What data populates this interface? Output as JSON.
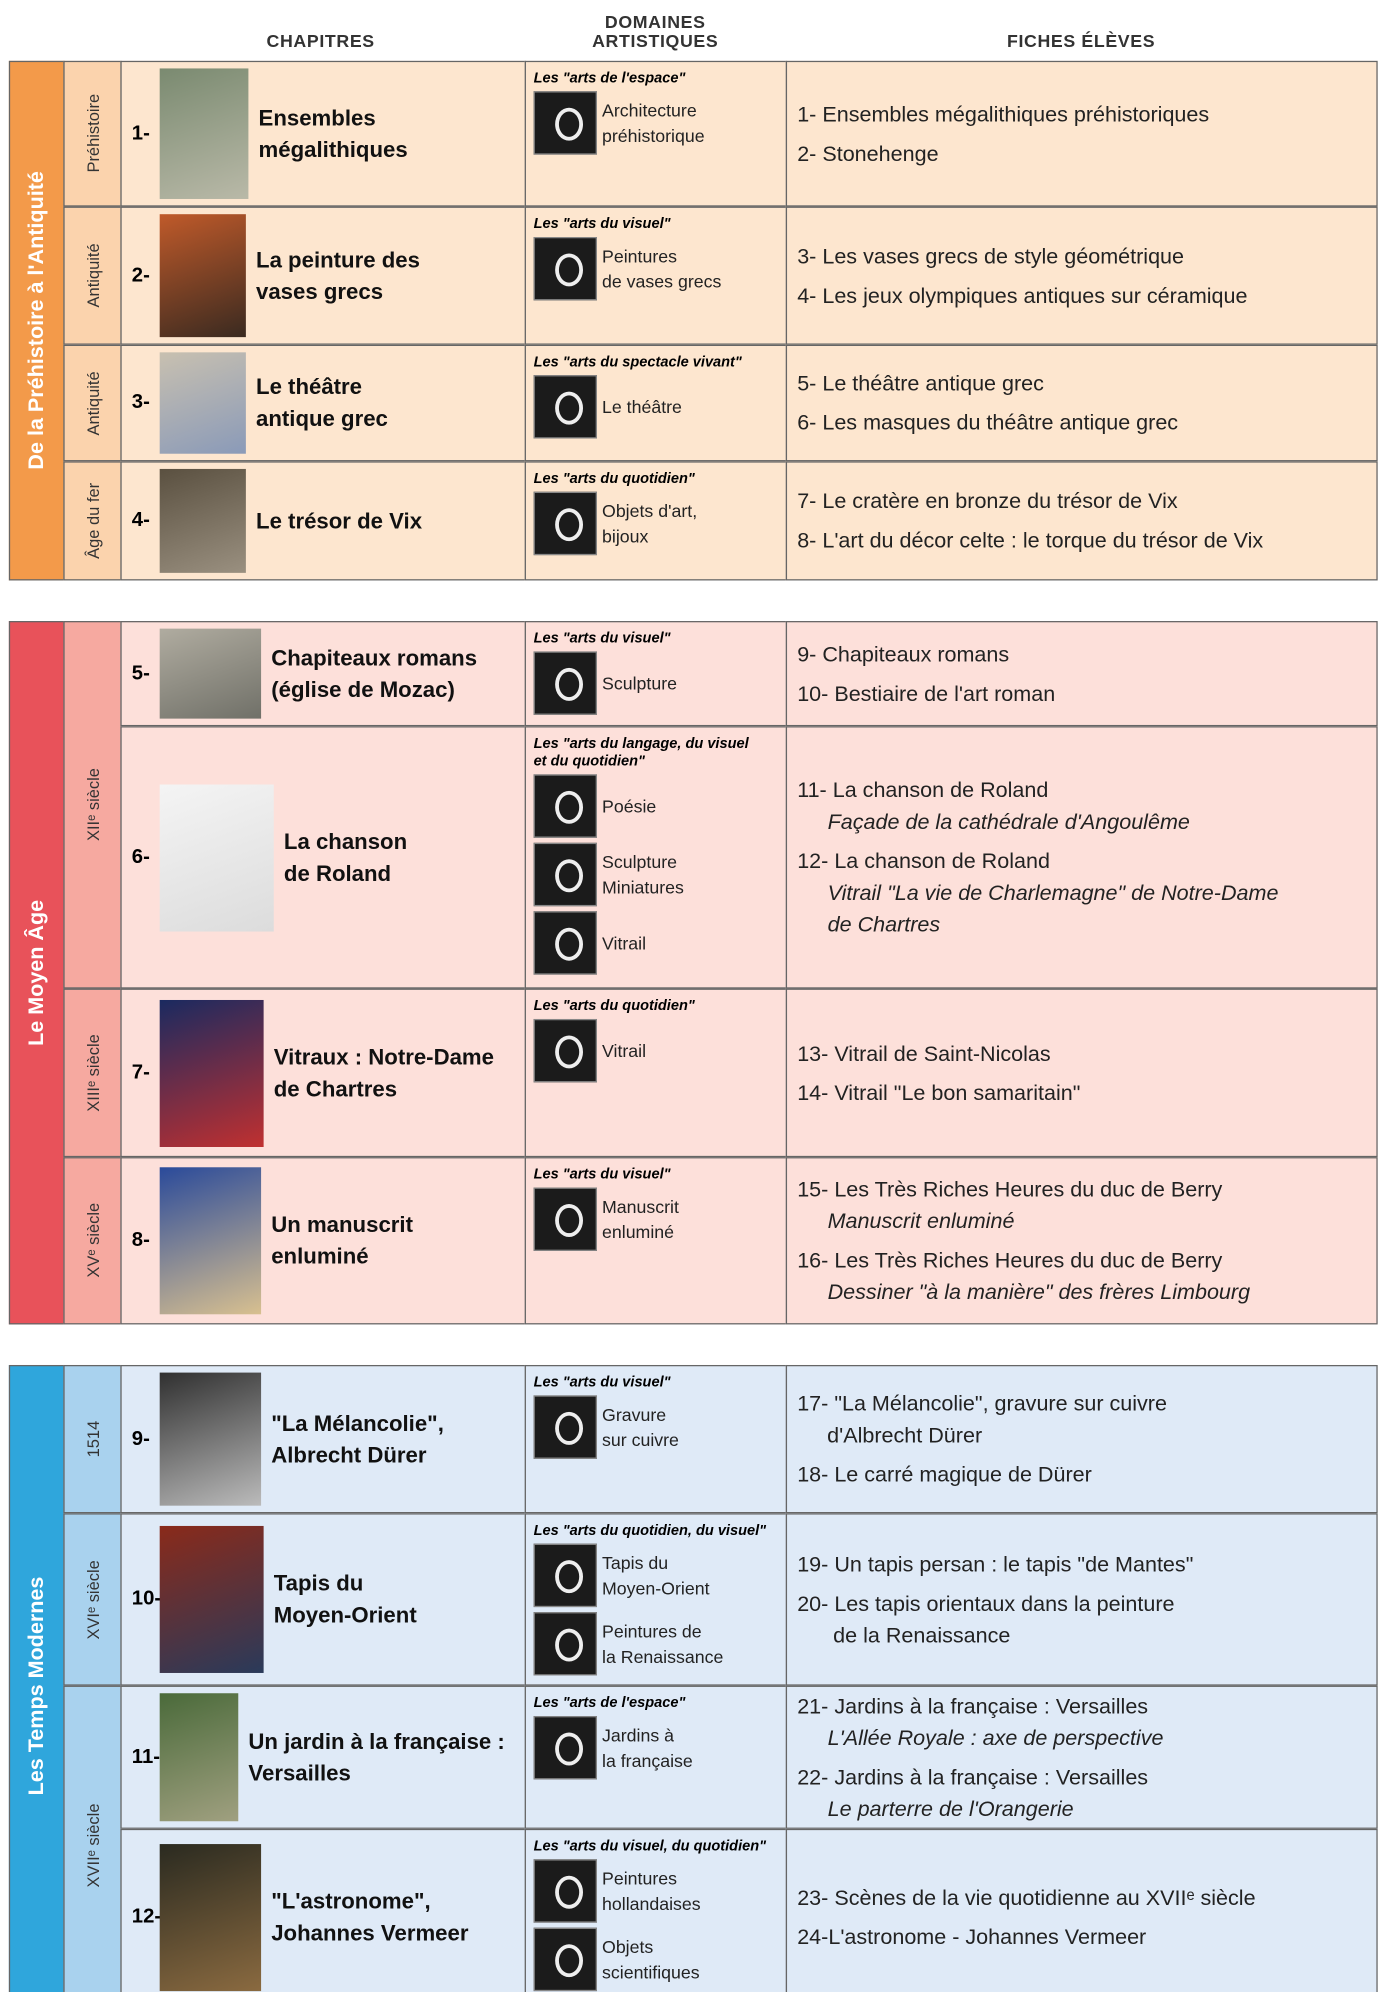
{
  "header": {
    "chapitres": "CHAPITRES",
    "domaines": "DOMAINES\nARTISTIQUES",
    "fiches": "FICHES ÉLÈVES"
  },
  "sections": [
    {
      "title": "De la Préhistoire à l'Antiquité",
      "eras": [
        {
          "label": "Préhistoire",
          "chapters": [
            {
              "num": "1-",
              "title": "Ensembles\nmégalithiques",
              "group": "Les \"arts de l'espace\"",
              "domains": [
                "Architecture\npréhistorique"
              ],
              "fiches": [
                {
                  "text": "1- Ensembles mégalithiques préhistoriques"
                },
                {
                  "text": "2- Stonehenge"
                }
              ]
            }
          ]
        },
        {
          "label": "Antiquité",
          "chapters": [
            {
              "num": "2-",
              "title": "La peinture des\nvases grecs",
              "group": "Les \"arts du visuel\"",
              "domains": [
                "Peintures\nde vases grecs"
              ],
              "fiches": [
                {
                  "text": "3- Les vases grecs de style géométrique"
                },
                {
                  "text": "4- Les jeux olympiques antiques sur céramique"
                }
              ]
            }
          ]
        },
        {
          "label": "Antiquité",
          "chapters": [
            {
              "num": "3-",
              "title": "Le théâtre\nantique grec",
              "group": "Les \"arts du spectacle vivant\"",
              "domains": [
                "Le théâtre"
              ],
              "fiches": [
                {
                  "text": "5- Le théâtre antique grec"
                },
                {
                  "text": "6- Les masques du théâtre antique grec"
                }
              ]
            }
          ]
        },
        {
          "label": "Âge du fer",
          "chapters": [
            {
              "num": "4-",
              "title": "Le trésor de Vix",
              "group": "Les \"arts du quotidien\"",
              "domains": [
                "Objets d'art,\nbijoux"
              ],
              "fiches": [
                {
                  "text": "7- Le cratère en bronze du trésor de Vix"
                },
                {
                  "text": "8- L'art du décor celte : le torque du trésor de Vix"
                }
              ]
            }
          ]
        }
      ]
    },
    {
      "title": "Le Moyen Âge",
      "eras": [
        {
          "label": "XIIᵉ siècle",
          "chapters": [
            {
              "num": "5-",
              "title": "Chapiteaux romans\n(église de Mozac)",
              "group": "Les \"arts du visuel\"",
              "domains": [
                "Sculpture"
              ],
              "fiches": [
                {
                  "text": "9- Chapiteaux romans"
                },
                {
                  "text": "10- Bestiaire de l'art roman"
                }
              ]
            },
            {
              "num": "6-",
              "title": "La chanson\nde Roland",
              "group": "Les \"arts du langage, du visuel\net du quotidien\"",
              "domains": [
                "Poésie",
                "Sculpture\nMiniatures",
                "Vitrail"
              ],
              "fiches": [
                {
                  "text": "11- La chanson de Roland",
                  "sub": "Façade de la cathédrale d'Angoulême"
                },
                {
                  "text": "12- La chanson de Roland",
                  "sub": "Vitrail \"La vie de Charlemagne\" de Notre-Dame\nde Chartres"
                }
              ]
            }
          ]
        },
        {
          "label": "XIIIᵉ siècle",
          "chapters": [
            {
              "num": "7-",
              "title": "Vitraux : Notre-Dame\nde Chartres",
              "group": "Les \"arts du quotidien\"",
              "domains": [
                "Vitrail"
              ],
              "fiches": [
                {
                  "text": "13- Vitrail de Saint-Nicolas"
                },
                {
                  "text": "14- Vitrail \"Le bon samaritain\""
                }
              ]
            }
          ]
        },
        {
          "label": "XVᵉ siècle",
          "chapters": [
            {
              "num": "8-",
              "title": "Un manuscrit\nenluminé",
              "group": "Les \"arts du visuel\"",
              "domains": [
                "Manuscrit\nenluminé"
              ],
              "fiches": [
                {
                  "text": "15- Les Très Riches Heures du duc de Berry",
                  "sub": "Manuscrit enluminé"
                },
                {
                  "text": "16- Les Très Riches Heures du duc de Berry",
                  "sub": "Dessiner \"à la manière\" des frères Limbourg"
                }
              ]
            }
          ]
        }
      ]
    },
    {
      "title": "Les Temps Modernes",
      "eras": [
        {
          "label": "1514",
          "chapters": [
            {
              "num": "9-",
              "title": "\"La Mélancolie\",\nAlbrecht Dürer",
              "group": "Les \"arts du visuel\"",
              "domains": [
                "Gravure\nsur cuivre"
              ],
              "fiches": [
                {
                  "text": "17- \"La Mélancolie\", gravure sur cuivre\n     d'Albrecht Dürer"
                },
                {
                  "text": "18- Le carré magique de Dürer"
                }
              ]
            }
          ]
        },
        {
          "label": "XVIᵉ siècle",
          "chapters": [
            {
              "num": "10-",
              "title": "Tapis du\nMoyen-Orient",
              "group": "Les \"arts du quotidien, du visuel\"",
              "domains": [
                "Tapis du\nMoyen-Orient",
                "Peintures de\nla Renaissance"
              ],
              "fiches": [
                {
                  "text": "19- Un tapis persan : le tapis \"de Mantes\""
                },
                {
                  "text": "20- Les tapis orientaux dans la peinture\n      de la Renaissance"
                }
              ]
            }
          ]
        },
        {
          "label": "XVIIᵉ siècle",
          "chapters": [
            {
              "num": "11-",
              "title": "Un jardin à la française :\nVersailles",
              "group": "Les \"arts de l'espace\"",
              "domains": [
                "Jardins à\nla française"
              ],
              "fiches": [
                {
                  "text": "21- Jardins à la française : Versailles",
                  "sub": "L'Allée Royale : axe de perspective"
                },
                {
                  "text": "22- Jardins à la française : Versailles",
                  "sub": "Le parterre de l'Orangerie"
                }
              ]
            },
            {
              "num": "12-",
              "title": "\"L'astronome\",\nJohannes Vermeer",
              "group": "Les \"arts du visuel, du quotidien\"",
              "domains": [
                "Peintures\nhollandaises",
                "Objets\nscientifiques"
              ],
              "fiches": [
                {
                  "text": "23- Scènes de la vie quotidienne au XVIIᵉ siècle"
                },
                {
                  "text": "24-L'astronome - Johannes Vermeer"
                }
              ]
            }
          ]
        }
      ]
    }
  ]
}
